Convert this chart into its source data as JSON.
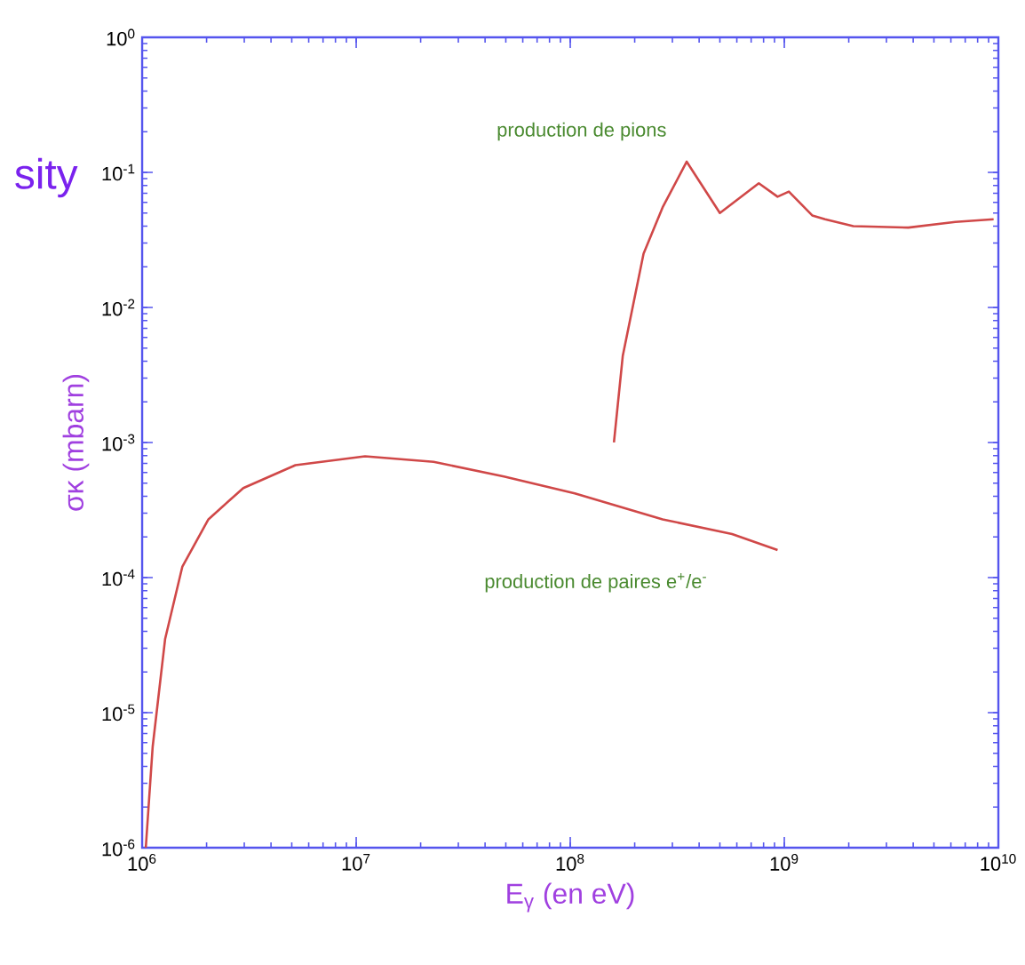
{
  "chart_data": {
    "type": "line",
    "log": "xy",
    "marker": "none",
    "line_style": "solid",
    "xlabel": "E$_{γ}$ (en eV)",
    "ylabel": "σκ (mbarn)",
    "annotations": [
      "sity"
    ],
    "xlim": [
      1000000.0,
      10000000000.0
    ],
    "ylim": [
      1e-06,
      1
    ],
    "xticks": [
      {
        "value": 1000000.0,
        "label": "10$^{6}$"
      },
      {
        "value": 10000000.0,
        "label": "10$^{7}$"
      },
      {
        "value": 100000000.0,
        "label": "10$^{8}$"
      },
      {
        "value": 1000000000.0,
        "label": "10$^{9}$"
      },
      {
        "value": 10000000000.0,
        "label": "10$^{10}$"
      }
    ],
    "yticks": [
      {
        "value": 1e-06,
        "label": "10$^{-6}$"
      },
      {
        "value": 1e-05,
        "label": "10$^{-5}$"
      },
      {
        "value": 0.0001,
        "label": "10$^{-4}$"
      },
      {
        "value": 0.001,
        "label": "10$^{-3}$"
      },
      {
        "value": 0.01,
        "label": "10$^{-2}$"
      },
      {
        "value": 0.1,
        "label": "10$^{-1}$"
      },
      {
        "value": 1,
        "label": "10$^{0}$"
      }
    ],
    "series": [
      {
        "name": "production de pions",
        "color": "#d04848",
        "x": [
          160000000.0,
          176000000.0,
          220000000.0,
          270000000.0,
          350000000.0,
          500000000.0,
          760000000.0,
          930000000.0,
          1050000000.0,
          1350000000.0,
          1550000000.0,
          2100000000.0,
          3800000000.0,
          6300000000.0,
          9500000000.0
        ],
        "values": [
          0.001,
          0.0044,
          0.025,
          0.055,
          0.12,
          0.05,
          0.083,
          0.066,
          0.072,
          0.048,
          0.045,
          0.04,
          0.039,
          0.043,
          0.045
        ]
      },
      {
        "name": "production de paires e$^{+}$/e$^{-}$",
        "color": "#d04848",
        "x": [
          1040000.0,
          1120000.0,
          1280000.0,
          1540000.0,
          2040000.0,
          2970000.0,
          5200000.0,
          11000000.0,
          23000000.0,
          49000000.0,
          105000000.0,
          270000000.0,
          570000000.0,
          930000000.0
        ],
        "values": [
          1e-06,
          5.6e-06,
          3.5e-05,
          0.00012,
          0.00027,
          0.00046,
          0.00068,
          0.00079,
          0.00072,
          0.00056,
          0.00042,
          0.00027,
          0.00021,
          0.00016
        ]
      }
    ]
  }
}
